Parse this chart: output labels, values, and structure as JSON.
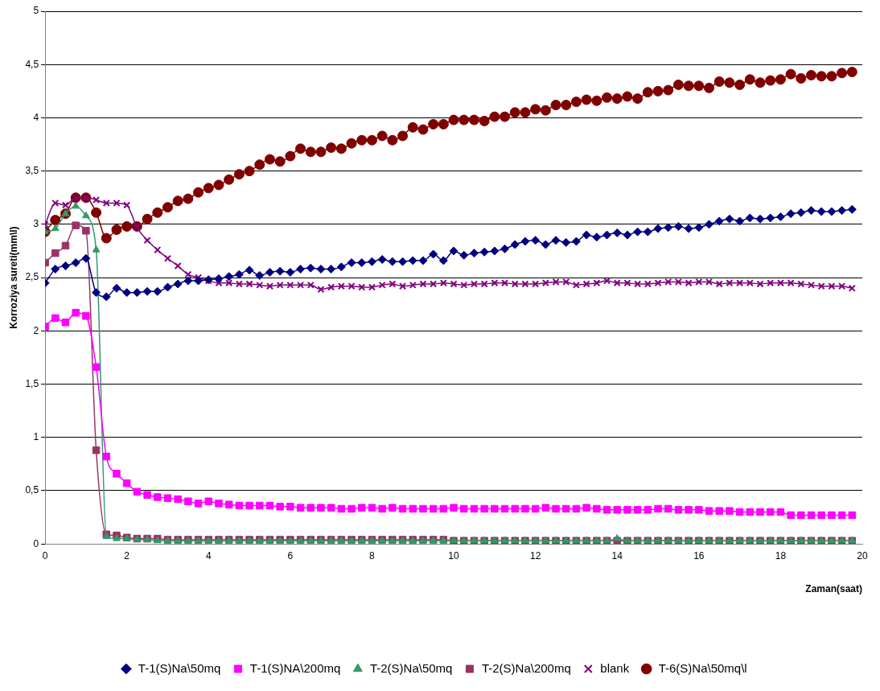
{
  "chart_data": {
    "type": "line",
    "xlabel": "Zaman(saat)",
    "ylabel": "Korroziya sureti(mm\\l)",
    "x": [
      0,
      0.25,
      0.5,
      0.75,
      1,
      1.25,
      1.5,
      1.75,
      2,
      2.25,
      2.5,
      2.75,
      3,
      3.25,
      3.5,
      3.75,
      4,
      4.25,
      4.5,
      4.75,
      5,
      5.25,
      5.5,
      5.75,
      6,
      6.25,
      6.5,
      6.75,
      7,
      7.25,
      7.5,
      7.75,
      8,
      8.25,
      8.5,
      8.75,
      9,
      9.25,
      9.5,
      9.75,
      10,
      10.25,
      10.5,
      10.75,
      11,
      11.25,
      11.5,
      11.75,
      12,
      12.25,
      12.5,
      12.75,
      13,
      13.25,
      13.5,
      13.75,
      14,
      14.25,
      14.5,
      14.75,
      15,
      15.25,
      15.5,
      15.75,
      16,
      16.25,
      16.5,
      16.75,
      17,
      17.25,
      17.5,
      17.75,
      18,
      18.25,
      18.5,
      18.75,
      19,
      19.25,
      19.5,
      19.75
    ],
    "series": [
      {
        "name": "T-1(S)Na\\50mq",
        "color": "#000080",
        "marker": "diamond",
        "values": [
          2.45,
          2.58,
          2.61,
          2.64,
          2.68,
          2.36,
          2.32,
          2.4,
          2.36,
          2.36,
          2.37,
          2.37,
          2.41,
          2.44,
          2.47,
          2.47,
          2.48,
          2.49,
          2.51,
          2.53,
          2.57,
          2.52,
          2.55,
          2.56,
          2.55,
          2.58,
          2.59,
          2.58,
          2.58,
          2.6,
          2.64,
          2.64,
          2.65,
          2.67,
          2.65,
          2.65,
          2.66,
          2.66,
          2.72,
          2.66,
          2.75,
          2.71,
          2.73,
          2.74,
          2.75,
          2.77,
          2.81,
          2.84,
          2.85,
          2.81,
          2.85,
          2.83,
          2.84,
          2.9,
          2.88,
          2.9,
          2.92,
          2.9,
          2.93,
          2.93,
          2.96,
          2.97,
          2.98,
          2.96,
          2.97,
          3.0,
          3.03,
          3.05,
          3.03,
          3.06,
          3.05,
          3.06,
          3.07,
          3.1,
          3.11,
          3.13,
          3.12,
          3.12,
          3.13,
          3.14
        ]
      },
      {
        "name": "T-1(S)NA\\200mq",
        "color": "#ff00ff",
        "marker": "square",
        "values": [
          2.04,
          2.12,
          2.08,
          2.17,
          2.14,
          1.66,
          0.82,
          0.66,
          0.57,
          0.49,
          0.46,
          0.44,
          0.43,
          0.42,
          0.4,
          0.38,
          0.4,
          0.38,
          0.37,
          0.36,
          0.36,
          0.36,
          0.36,
          0.35,
          0.35,
          0.34,
          0.34,
          0.34,
          0.34,
          0.33,
          0.33,
          0.34,
          0.34,
          0.33,
          0.34,
          0.33,
          0.33,
          0.33,
          0.33,
          0.33,
          0.34,
          0.33,
          0.33,
          0.33,
          0.33,
          0.33,
          0.33,
          0.33,
          0.33,
          0.34,
          0.33,
          0.33,
          0.33,
          0.34,
          0.33,
          0.32,
          0.32,
          0.32,
          0.32,
          0.32,
          0.33,
          0.33,
          0.32,
          0.32,
          0.32,
          0.31,
          0.31,
          0.31,
          0.3,
          0.3,
          0.3,
          0.3,
          0.3,
          0.27,
          0.27,
          0.27,
          0.27,
          0.27,
          0.27,
          0.27
        ]
      },
      {
        "name": "T-2(S)Na\\50mq",
        "color": "#339966",
        "marker": "triangle",
        "values": [
          2.93,
          2.96,
          3.1,
          3.17,
          3.08,
          2.76,
          0.07,
          0.05,
          0.05,
          0.04,
          0.04,
          0.03,
          0.03,
          0.03,
          0.03,
          0.03,
          0.03,
          0.03,
          0.03,
          0.03,
          0.03,
          0.03,
          0.03,
          0.03,
          0.03,
          0.03,
          0.03,
          0.03,
          0.03,
          0.03,
          0.03,
          0.03,
          0.03,
          0.03,
          0.03,
          0.03,
          0.03,
          0.03,
          0.03,
          0.03,
          0.03,
          0.03,
          0.03,
          0.03,
          0.03,
          0.03,
          0.03,
          0.03,
          0.03,
          0.03,
          0.03,
          0.03,
          0.03,
          0.03,
          0.03,
          0.03,
          0.05,
          0.03,
          0.03,
          0.03,
          0.03,
          0.03,
          0.03,
          0.03,
          0.03,
          0.03,
          0.03,
          0.03,
          0.03,
          0.03,
          0.03,
          0.03,
          0.03,
          0.03,
          0.03,
          0.03,
          0.03,
          0.03,
          0.03,
          0.03
        ]
      },
      {
        "name": "T-2(S)Na\\200mq",
        "color": "#993366",
        "marker": "square",
        "values": [
          2.64,
          2.73,
          2.8,
          2.99,
          2.94,
          0.88,
          0.09,
          0.08,
          0.06,
          0.05,
          0.05,
          0.05,
          0.04,
          0.04,
          0.04,
          0.04,
          0.04,
          0.04,
          0.04,
          0.04,
          0.04,
          0.04,
          0.04,
          0.04,
          0.04,
          0.04,
          0.04,
          0.04,
          0.04,
          0.04,
          0.04,
          0.04,
          0.04,
          0.04,
          0.04,
          0.04,
          0.04,
          0.04,
          0.04,
          0.04,
          0.03,
          0.03,
          0.03,
          0.03,
          0.03,
          0.03,
          0.03,
          0.03,
          0.03,
          0.03,
          0.03,
          0.03,
          0.03,
          0.03,
          0.03,
          0.03,
          0.03,
          0.03,
          0.03,
          0.03,
          0.03,
          0.03,
          0.03,
          0.03,
          0.03,
          0.03,
          0.03,
          0.03,
          0.03,
          0.03,
          0.03,
          0.03,
          0.03,
          0.03,
          0.03,
          0.03,
          0.03,
          0.03,
          0.03,
          0.03
        ]
      },
      {
        "name": "blank",
        "color": "#800080",
        "marker": "cross",
        "values": [
          3.0,
          3.2,
          3.18,
          3.25,
          3.25,
          3.23,
          3.2,
          3.2,
          3.18,
          2.97,
          2.85,
          2.76,
          2.68,
          2.61,
          2.53,
          2.5,
          2.47,
          2.45,
          2.45,
          2.44,
          2.44,
          2.43,
          2.42,
          2.43,
          2.43,
          2.43,
          2.43,
          2.39,
          2.41,
          2.42,
          2.42,
          2.41,
          2.41,
          2.43,
          2.44,
          2.42,
          2.43,
          2.44,
          2.44,
          2.45,
          2.44,
          2.43,
          2.44,
          2.44,
          2.45,
          2.45,
          2.44,
          2.44,
          2.44,
          2.45,
          2.46,
          2.46,
          2.43,
          2.44,
          2.45,
          2.47,
          2.45,
          2.45,
          2.44,
          2.44,
          2.45,
          2.46,
          2.46,
          2.45,
          2.46,
          2.46,
          2.44,
          2.45,
          2.45,
          2.45,
          2.44,
          2.45,
          2.45,
          2.45,
          2.44,
          2.43,
          2.42,
          2.42,
          2.42,
          2.4
        ]
      },
      {
        "name": "T-6(S)Na\\50mq\\l",
        "color": "#800000",
        "marker": "circle",
        "values": [
          2.93,
          3.04,
          3.1,
          3.25,
          3.25,
          3.11,
          2.87,
          2.95,
          2.98,
          2.98,
          3.05,
          3.11,
          3.16,
          3.22,
          3.24,
          3.3,
          3.34,
          3.37,
          3.42,
          3.47,
          3.5,
          3.56,
          3.61,
          3.59,
          3.64,
          3.71,
          3.68,
          3.68,
          3.72,
          3.71,
          3.76,
          3.79,
          3.79,
          3.83,
          3.79,
          3.83,
          3.91,
          3.89,
          3.94,
          3.94,
          3.98,
          3.98,
          3.98,
          3.97,
          4.01,
          4.01,
          4.05,
          4.05,
          4.08,
          4.07,
          4.12,
          4.12,
          4.15,
          4.17,
          4.16,
          4.19,
          4.18,
          4.2,
          4.18,
          4.24,
          4.25,
          4.26,
          4.31,
          4.3,
          4.3,
          4.28,
          4.34,
          4.33,
          4.31,
          4.36,
          4.33,
          4.35,
          4.36,
          4.41,
          4.37,
          4.4,
          4.39,
          4.39,
          4.42,
          4.43
        ]
      }
    ],
    "xlim": [
      0,
      20
    ],
    "xticks": [
      0,
      2,
      4,
      6,
      8,
      10,
      12,
      14,
      16,
      18,
      20
    ],
    "ylim": [
      0,
      5
    ],
    "yticks": [
      0,
      {
        "value": 0.5,
        "label": "0,5"
      },
      1,
      {
        "value": 1.5,
        "label": "1,5"
      },
      2,
      {
        "value": 2.5,
        "label": "2,5"
      },
      3,
      {
        "value": 3.5,
        "label": "3,5"
      },
      4,
      {
        "value": 4.5,
        "label": "4,5"
      },
      5
    ],
    "grid": "y",
    "legend": "bottom"
  }
}
